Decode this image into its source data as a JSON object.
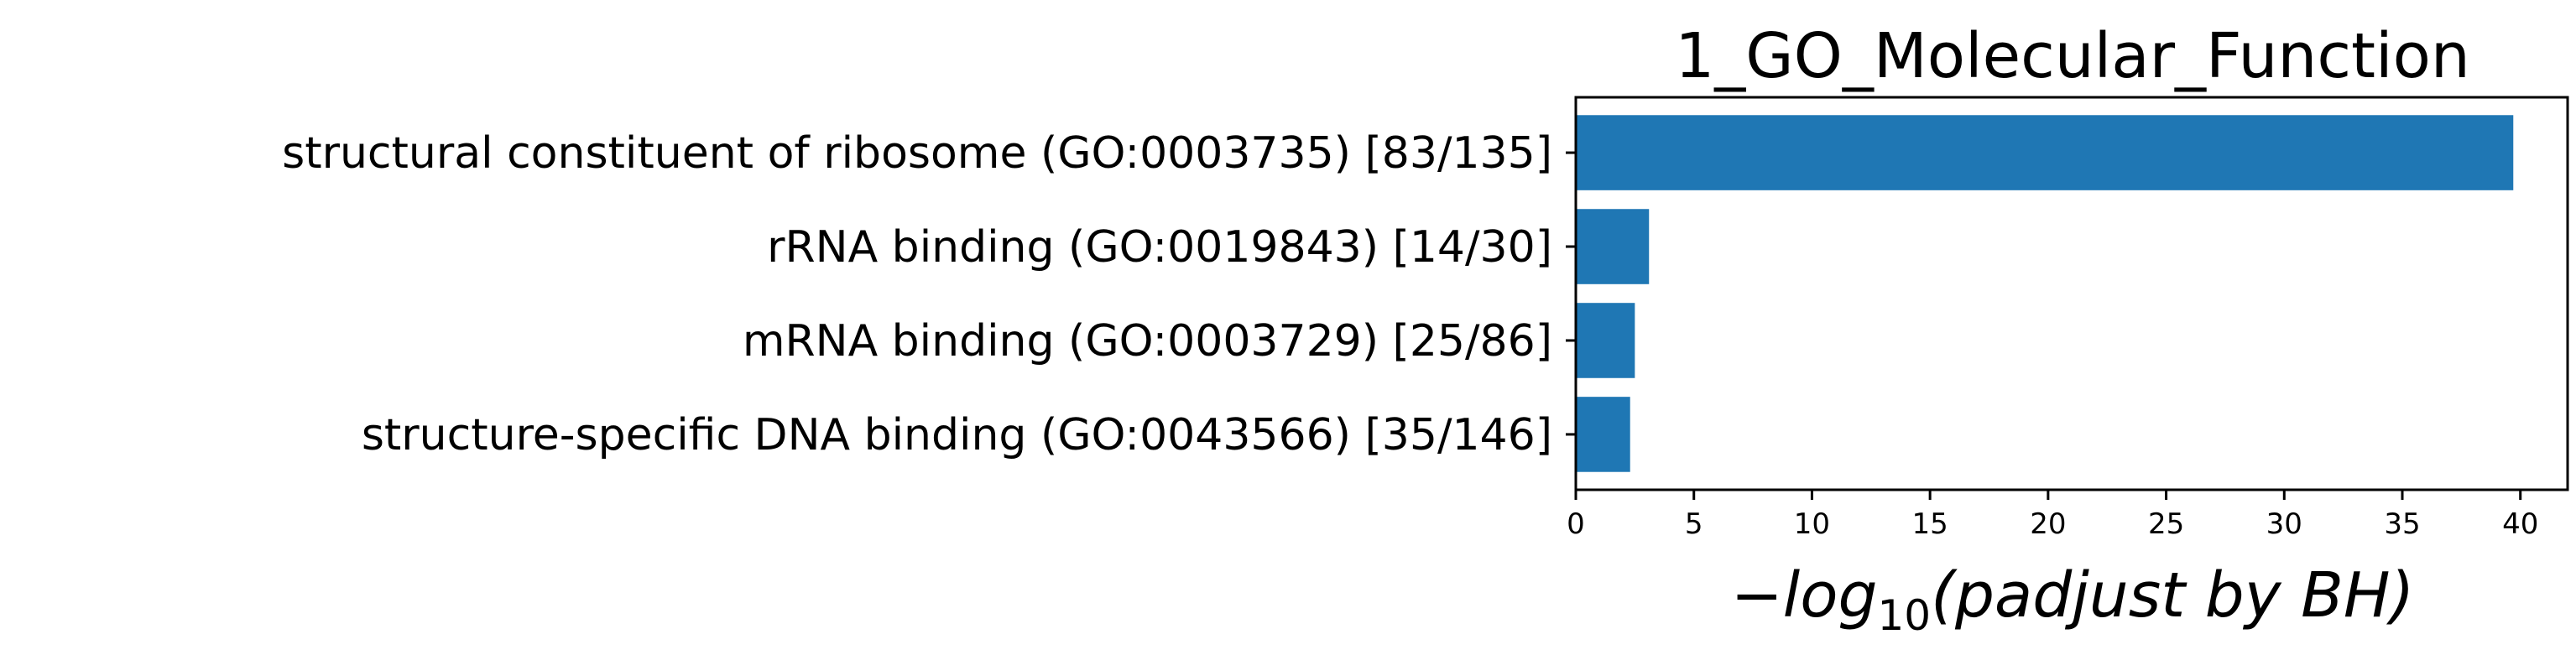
{
  "chart_data": {
    "type": "bar",
    "orientation": "horizontal",
    "title": "1_GO_Molecular_Function",
    "categories": [
      "structural constituent of ribosome (GO:0003735) [83/135]",
      "rRNA binding (GO:0019843) [14/30]",
      "mRNA binding (GO:0003729) [25/86]",
      "structure-specific DNA binding (GO:0043566) [35/146]"
    ],
    "values": [
      39.7,
      3.1,
      2.5,
      2.3
    ],
    "xlabel": {
      "prefix": "−",
      "log": "log",
      "base": "10",
      "paren": "(padjust by BH)"
    },
    "xlim": [
      0,
      42
    ],
    "xticks": [
      0,
      5,
      10,
      15,
      20,
      25,
      30,
      35,
      40
    ],
    "bar_color": "#1f77b4",
    "grid": false,
    "legend": false
  }
}
